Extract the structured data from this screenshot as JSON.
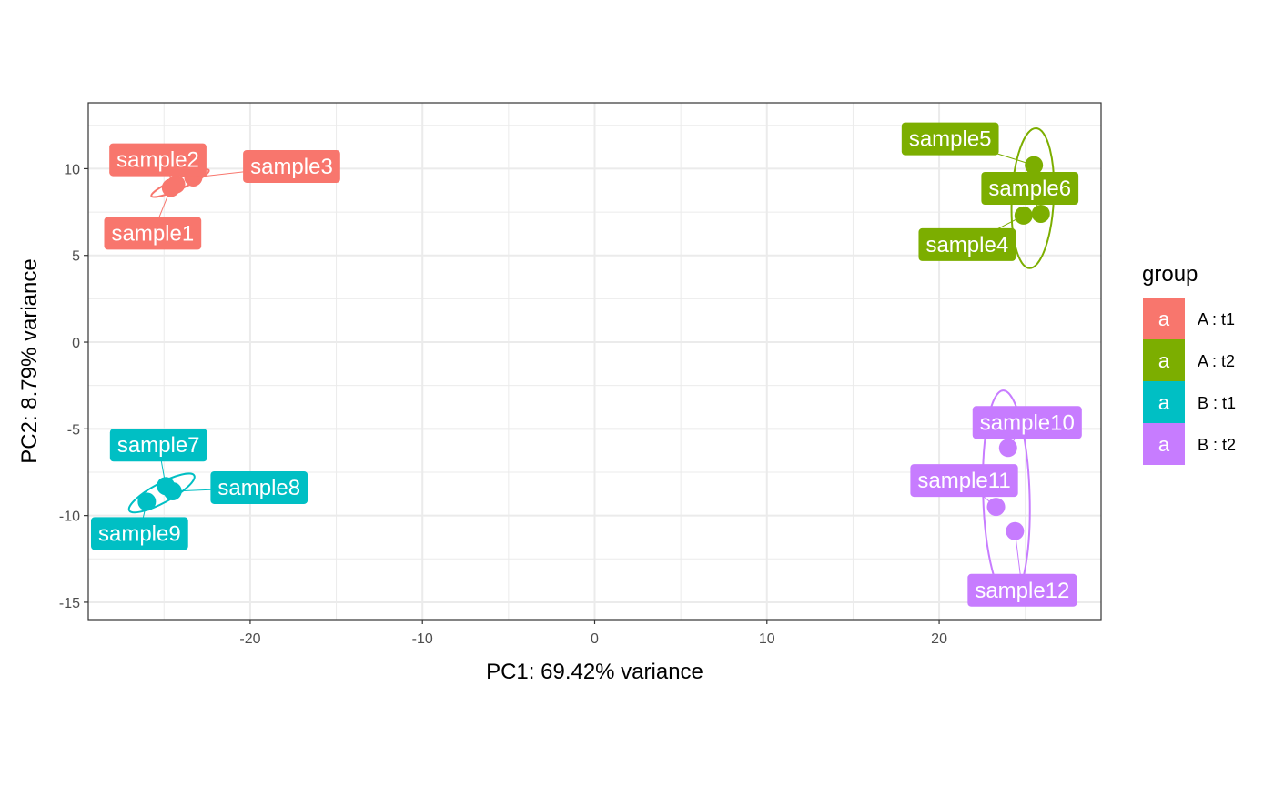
{
  "chart_data": {
    "type": "scatter",
    "xlabel": "PC1: 69.42% variance",
    "ylabel": "PC2: 8.79% variance",
    "xlim": [
      -29.4,
      29.4
    ],
    "ylim": [
      -16.0,
      13.8
    ],
    "x_ticks": [
      -20,
      -10,
      0,
      10,
      20
    ],
    "y_ticks": [
      -15,
      -10,
      -5,
      0,
      5,
      10
    ],
    "grid": true,
    "legend_position": "right",
    "legend": {
      "title": "group",
      "key_glyph": "a",
      "entries": [
        {
          "label": "A : t1",
          "color": "#F8766D"
        },
        {
          "label": "A : t2",
          "color": "#7CAE00"
        },
        {
          "label": "B : t1",
          "color": "#00BFC4"
        },
        {
          "label": "B : t2",
          "color": "#C77CFF"
        }
      ]
    },
    "series": [
      {
        "name": "A : t1",
        "color": "#F8766D",
        "points": [
          {
            "label": "sample1",
            "x": -24.6,
            "y": 8.9
          },
          {
            "label": "sample2",
            "x": -24.3,
            "y": 9.1
          },
          {
            "label": "sample3",
            "x": -23.3,
            "y": 9.5
          }
        ]
      },
      {
        "name": "A : t2",
        "color": "#7CAE00",
        "points": [
          {
            "label": "sample4",
            "x": 24.9,
            "y": 7.3
          },
          {
            "label": "sample5",
            "x": 25.5,
            "y": 10.2
          },
          {
            "label": "sample6",
            "x": 25.9,
            "y": 7.4
          }
        ]
      },
      {
        "name": "B : t1",
        "color": "#00BFC4",
        "points": [
          {
            "label": "sample7",
            "x": -24.9,
            "y": -8.3
          },
          {
            "label": "sample8",
            "x": -24.5,
            "y": -8.6
          },
          {
            "label": "sample9",
            "x": -26.0,
            "y": -9.2
          }
        ]
      },
      {
        "name": "B : t2",
        "color": "#C77CFF",
        "points": [
          {
            "label": "sample10",
            "x": 24.0,
            "y": -6.1
          },
          {
            "label": "sample11",
            "x": 23.3,
            "y": -9.5
          },
          {
            "label": "sample12",
            "x": 24.4,
            "y": -10.9
          }
        ]
      }
    ]
  }
}
